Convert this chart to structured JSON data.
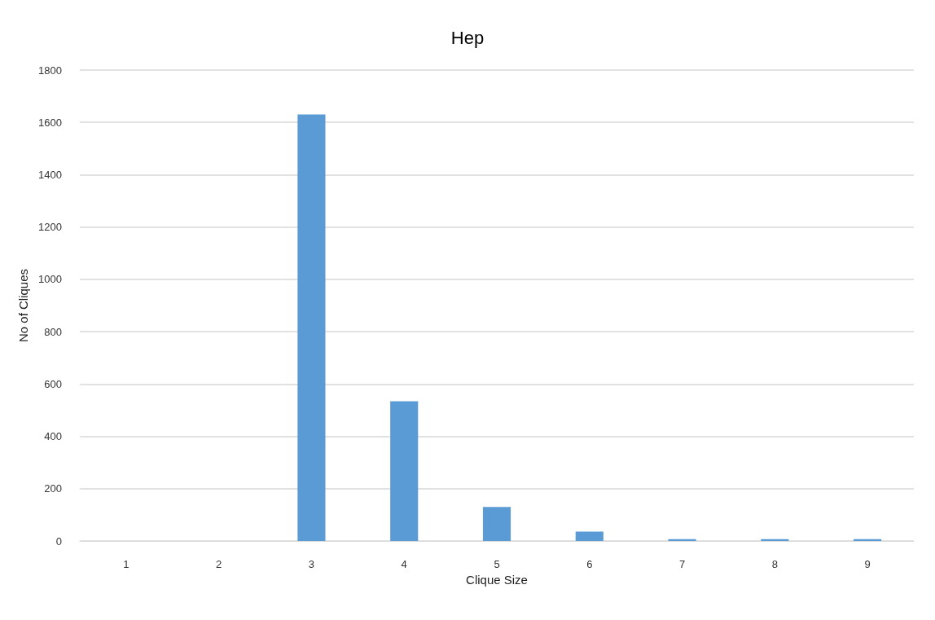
{
  "chart_data": {
    "type": "bar",
    "title": "Hep",
    "xlabel": "Clique Size",
    "ylabel": "No of Cliques",
    "categories": [
      "1",
      "2",
      "3",
      "4",
      "5",
      "6",
      "7",
      "8",
      "9"
    ],
    "values": [
      0,
      0,
      1630,
      534,
      130,
      36,
      7,
      7,
      7
    ],
    "color": "#5b9bd5",
    "ylim": [
      0,
      1800
    ],
    "yticks": [
      0,
      200,
      400,
      600,
      800,
      1000,
      1200,
      1400,
      1600,
      1800
    ],
    "grid": "y"
  }
}
